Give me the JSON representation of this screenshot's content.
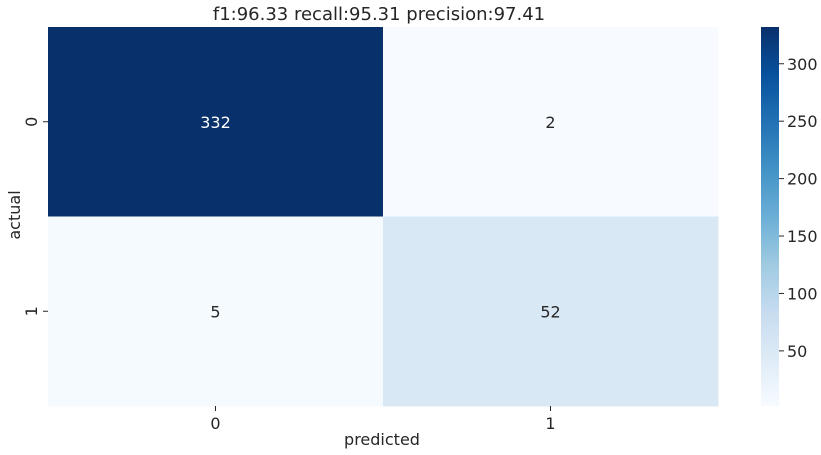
{
  "chart_data": {
    "type": "heatmap",
    "title": "f1:96.33  recall:95.31  precision:97.41",
    "xlabel": "predicted",
    "ylabel": "actual",
    "x_categories": [
      "0",
      "1"
    ],
    "y_categories": [
      "0",
      "1"
    ],
    "values": [
      [
        332,
        2
      ],
      [
        5,
        52
      ]
    ],
    "colormap": "Blues",
    "color_range": [
      2,
      332
    ],
    "colorbar_ticks": [
      50,
      100,
      150,
      200,
      250,
      300
    ],
    "annotations": true
  }
}
